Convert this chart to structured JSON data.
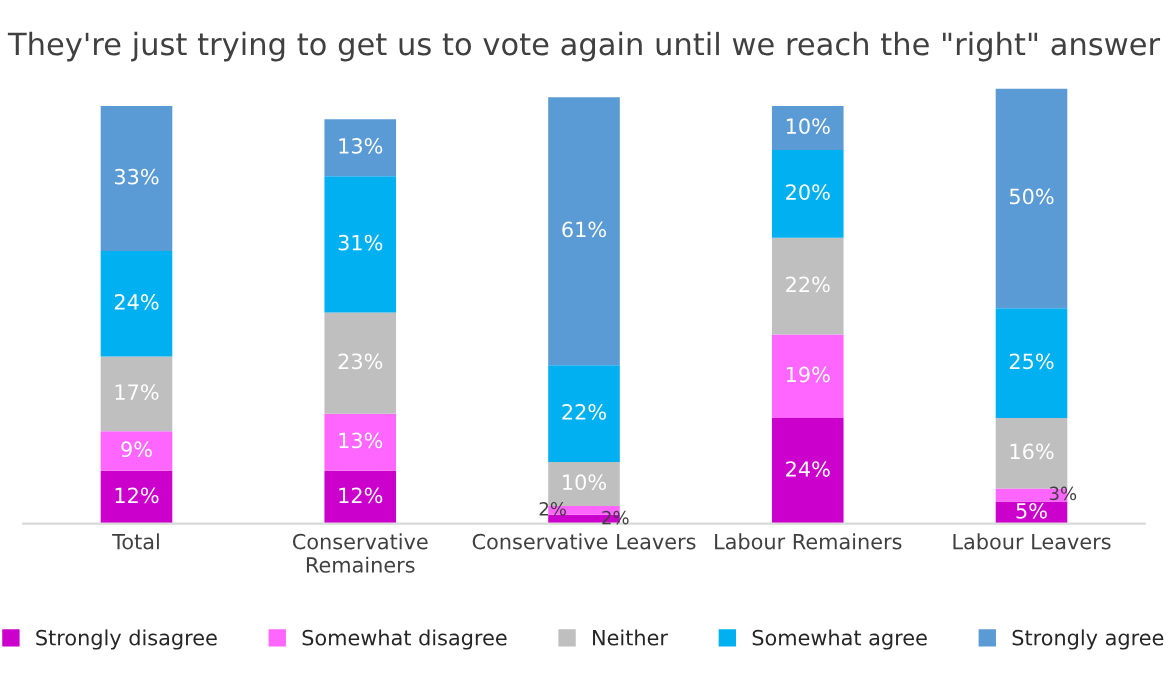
{
  "chart_data": {
    "type": "bar",
    "title": "They're just trying to get us to vote again until we reach the \"right\" answer",
    "categories": [
      "Total",
      "Conservative Remainers",
      "Conservative Leavers",
      "Labour Remainers",
      "Labour Leavers"
    ],
    "stacked": true,
    "legend": "bottom",
    "grid": false,
    "series": [
      {
        "name": "Strongly disagree",
        "color": "#cc00cc",
        "values": [
          12,
          12,
          2,
          24,
          5
        ],
        "value_labels": [
          "12%",
          "12%",
          "2%",
          "24%",
          "5%"
        ]
      },
      {
        "name": "Somewhat disagree",
        "color": "#ff66ff",
        "values": [
          9,
          13,
          2,
          19,
          3
        ],
        "value_labels": [
          "9%",
          "13%",
          "2%",
          "19%",
          "3%"
        ]
      },
      {
        "name": "Neither",
        "color": "#bfbfbf",
        "values": [
          17,
          23,
          10,
          22,
          16
        ],
        "value_labels": [
          "17%",
          "23%",
          "10%",
          "22%",
          "16%"
        ]
      },
      {
        "name": "Somewhat agree",
        "color": "#00b0f0",
        "values": [
          24,
          31,
          22,
          20,
          25
        ],
        "value_labels": [
          "24%",
          "31%",
          "22%",
          "20%",
          "25%"
        ]
      },
      {
        "name": "Strongly agree",
        "color": "#5b9bd5",
        "values": [
          33,
          13,
          61,
          10,
          50
        ],
        "value_labels": [
          "33%",
          "13%",
          "61%",
          "10%",
          "50%"
        ]
      }
    ]
  }
}
